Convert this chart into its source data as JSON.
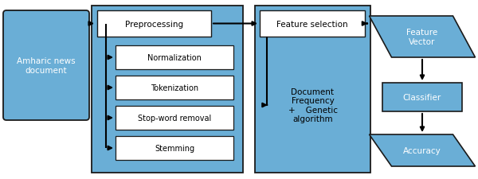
{
  "fig_width": 6.0,
  "fig_height": 2.26,
  "dpi": 100,
  "bg_color": "#ffffff",
  "blue_fill": "#6aaed6",
  "white": "#ffffff",
  "border_color": "#1a1a1a",
  "text_dark": "#1a1a1a",
  "text_white": "#ffffff",
  "title": "Amharic news\ndocument",
  "preprocessing": "Preprocessing",
  "feature_selection": "Feature selection",
  "normalization": "Normalization",
  "tokenization": "Tokenization",
  "stop_word": "Stop-word removal",
  "stemming": "Stemming",
  "doc_freq_line1": "Document",
  "doc_freq_line2": "Frequency",
  "doc_freq_line3": "+    Genetic",
  "doc_freq_line4": "algorithm",
  "feature_vector": "Feature\nVector",
  "classifier": "Classifier",
  "accuracy": "Accuracy",
  "font_size": 7.5
}
